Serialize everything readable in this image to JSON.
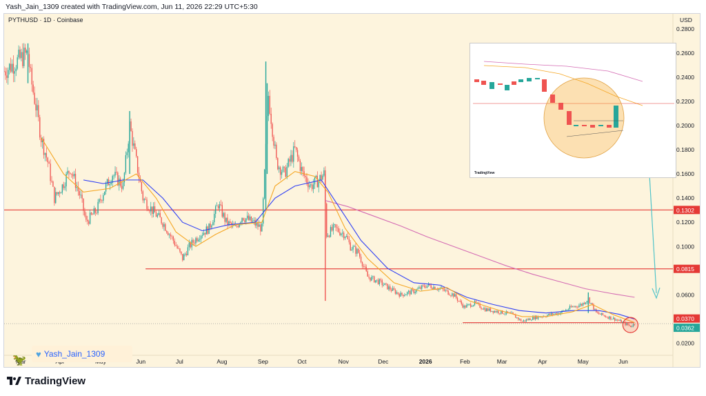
{
  "credit": "Yash_Jain_1309 created with TradingView.com, Jun 11, 2026 22:29 UTC+5:30",
  "brand": "TradingView",
  "author_badge": "Yash_Jain_1309",
  "inset_label": "TradingView",
  "colors": {
    "background": "#fdf4dd",
    "up_candle": "#26a69a",
    "down_candle": "#ef5350",
    "ma_fast": "#f5a623",
    "ma_mid": "#2d3ef5",
    "ma_slow": "#d46bb3",
    "level_line": "#e53935",
    "arrow": "#4fc3c9"
  },
  "chart_data": {
    "type": "line",
    "title": "PYTHUSD · 1D · Coinbase",
    "currency_label": "USD",
    "y_ticks": [
      "0.0200",
      "0.0400",
      "0.0600",
      "0.0800",
      "0.1000",
      "0.1200",
      "0.1400",
      "0.1600",
      "0.1800",
      "0.2000",
      "0.2200",
      "0.2400",
      "0.2600",
      "0.2800"
    ],
    "ylim": [
      0.014,
      0.289
    ],
    "x_ticks": [
      "Mar",
      "Apr",
      "May",
      "Jun",
      "Jul",
      "Aug",
      "Sep",
      "Oct",
      "Nov",
      "Dec",
      "2026",
      "Feb",
      "Mar",
      "Apr",
      "May",
      "Jun"
    ],
    "x_tick_days": [
      12,
      42,
      72,
      103,
      133,
      164,
      195,
      225,
      256,
      286,
      317,
      348,
      376,
      407,
      437,
      468
    ],
    "xlim_days": [
      0,
      506
    ],
    "price_labels": [
      {
        "text": "0.1302",
        "value": 0.1302,
        "color": "#e53935"
      },
      {
        "text": "0.0815",
        "value": 0.0815,
        "color": "#e53935"
      },
      {
        "text": "0.0370",
        "value": 0.037,
        "color": "#e53935"
      },
      {
        "text": "0.0362",
        "value": 0.0362,
        "color": "#26a69a"
      }
    ],
    "horizontal_levels": [
      {
        "value": 0.1302,
        "start_day": 0,
        "end_day": 506
      },
      {
        "value": 0.0815,
        "start_day": 107,
        "end_day": 506
      },
      {
        "value": 0.037,
        "start_day": 347,
        "end_day": 477
      },
      {
        "value": 0.0362,
        "start_day": 0,
        "end_day": 506,
        "dotted": true
      }
    ],
    "price_path": [
      {
        "day": 0,
        "price": 0.245
      },
      {
        "day": 18,
        "price": 0.26
      },
      {
        "day": 20,
        "price": 0.24
      },
      {
        "day": 25,
        "price": 0.21
      },
      {
        "day": 28,
        "price": 0.19
      },
      {
        "day": 33,
        "price": 0.17
      },
      {
        "day": 38,
        "price": 0.14
      },
      {
        "day": 44,
        "price": 0.15
      },
      {
        "day": 50,
        "price": 0.165
      },
      {
        "day": 58,
        "price": 0.14
      },
      {
        "day": 62,
        "price": 0.12
      },
      {
        "day": 70,
        "price": 0.13
      },
      {
        "day": 75,
        "price": 0.145
      },
      {
        "day": 82,
        "price": 0.16
      },
      {
        "day": 90,
        "price": 0.15
      },
      {
        "day": 95,
        "price": 0.2
      },
      {
        "day": 100,
        "price": 0.17
      },
      {
        "day": 105,
        "price": 0.14
      },
      {
        "day": 112,
        "price": 0.13
      },
      {
        "day": 120,
        "price": 0.12
      },
      {
        "day": 128,
        "price": 0.105
      },
      {
        "day": 135,
        "price": 0.09
      },
      {
        "day": 140,
        "price": 0.1
      },
      {
        "day": 148,
        "price": 0.11
      },
      {
        "day": 155,
        "price": 0.115
      },
      {
        "day": 162,
        "price": 0.135
      },
      {
        "day": 168,
        "price": 0.12
      },
      {
        "day": 175,
        "price": 0.115
      },
      {
        "day": 180,
        "price": 0.125
      },
      {
        "day": 188,
        "price": 0.12
      },
      {
        "day": 195,
        "price": 0.115
      },
      {
        "day": 200,
        "price": 0.225
      },
      {
        "day": 206,
        "price": 0.17
      },
      {
        "day": 212,
        "price": 0.16
      },
      {
        "day": 220,
        "price": 0.18
      },
      {
        "day": 226,
        "price": 0.16
      },
      {
        "day": 232,
        "price": 0.15
      },
      {
        "day": 238,
        "price": 0.155
      },
      {
        "day": 242,
        "price": 0.16
      },
      {
        "day": 244,
        "price": 0.11
      },
      {
        "day": 250,
        "price": 0.115
      },
      {
        "day": 258,
        "price": 0.11
      },
      {
        "day": 262,
        "price": 0.1
      },
      {
        "day": 268,
        "price": 0.095
      },
      {
        "day": 275,
        "price": 0.075
      },
      {
        "day": 285,
        "price": 0.07
      },
      {
        "day": 292,
        "price": 0.065
      },
      {
        "day": 300,
        "price": 0.06
      },
      {
        "day": 310,
        "price": 0.063
      },
      {
        "day": 320,
        "price": 0.068
      },
      {
        "day": 330,
        "price": 0.065
      },
      {
        "day": 340,
        "price": 0.06
      },
      {
        "day": 348,
        "price": 0.05
      },
      {
        "day": 356,
        "price": 0.053
      },
      {
        "day": 364,
        "price": 0.048
      },
      {
        "day": 374,
        "price": 0.046
      },
      {
        "day": 384,
        "price": 0.044
      },
      {
        "day": 392,
        "price": 0.038
      },
      {
        "day": 400,
        "price": 0.041
      },
      {
        "day": 410,
        "price": 0.043
      },
      {
        "day": 420,
        "price": 0.045
      },
      {
        "day": 430,
        "price": 0.05
      },
      {
        "day": 437,
        "price": 0.052
      },
      {
        "day": 442,
        "price": 0.057
      },
      {
        "day": 448,
        "price": 0.045
      },
      {
        "day": 456,
        "price": 0.042
      },
      {
        "day": 462,
        "price": 0.04
      },
      {
        "day": 468,
        "price": 0.037
      },
      {
        "day": 474,
        "price": 0.034
      },
      {
        "day": 477,
        "price": 0.0362
      }
    ],
    "spikes": [
      {
        "day": 18,
        "low": 0.235,
        "high": 0.268
      },
      {
        "day": 95,
        "low": 0.16,
        "high": 0.212
      },
      {
        "day": 198,
        "low": 0.13,
        "high": 0.253
      },
      {
        "day": 199,
        "low": 0.16,
        "high": 0.235
      },
      {
        "day": 243,
        "low": 0.055,
        "high": 0.16
      },
      {
        "day": 442,
        "low": 0.045,
        "high": 0.062
      }
    ],
    "ma_fast": [
      {
        "day": 28,
        "price": 0.19
      },
      {
        "day": 45,
        "price": 0.16
      },
      {
        "day": 60,
        "price": 0.145
      },
      {
        "day": 80,
        "price": 0.148
      },
      {
        "day": 100,
        "price": 0.16
      },
      {
        "day": 115,
        "price": 0.14
      },
      {
        "day": 130,
        "price": 0.112
      },
      {
        "day": 145,
        "price": 0.1
      },
      {
        "day": 160,
        "price": 0.11
      },
      {
        "day": 175,
        "price": 0.118
      },
      {
        "day": 195,
        "price": 0.12
      },
      {
        "day": 205,
        "price": 0.15
      },
      {
        "day": 220,
        "price": 0.162
      },
      {
        "day": 235,
        "price": 0.158
      },
      {
        "day": 245,
        "price": 0.145
      },
      {
        "day": 258,
        "price": 0.115
      },
      {
        "day": 275,
        "price": 0.09
      },
      {
        "day": 295,
        "price": 0.07
      },
      {
        "day": 315,
        "price": 0.063
      },
      {
        "day": 335,
        "price": 0.066
      },
      {
        "day": 352,
        "price": 0.055
      },
      {
        "day": 372,
        "price": 0.048
      },
      {
        "day": 392,
        "price": 0.042
      },
      {
        "day": 410,
        "price": 0.042
      },
      {
        "day": 430,
        "price": 0.046
      },
      {
        "day": 445,
        "price": 0.052
      },
      {
        "day": 460,
        "price": 0.044
      },
      {
        "day": 477,
        "price": 0.037
      }
    ],
    "ma_mid": [
      {
        "day": 60,
        "price": 0.155
      },
      {
        "day": 75,
        "price": 0.152
      },
      {
        "day": 90,
        "price": 0.155
      },
      {
        "day": 105,
        "price": 0.155
      },
      {
        "day": 120,
        "price": 0.14
      },
      {
        "day": 135,
        "price": 0.12
      },
      {
        "day": 150,
        "price": 0.113
      },
      {
        "day": 170,
        "price": 0.118
      },
      {
        "day": 190,
        "price": 0.12
      },
      {
        "day": 205,
        "price": 0.14
      },
      {
        "day": 220,
        "price": 0.15
      },
      {
        "day": 240,
        "price": 0.155
      },
      {
        "day": 255,
        "price": 0.13
      },
      {
        "day": 270,
        "price": 0.105
      },
      {
        "day": 290,
        "price": 0.082
      },
      {
        "day": 310,
        "price": 0.07
      },
      {
        "day": 330,
        "price": 0.068
      },
      {
        "day": 350,
        "price": 0.058
      },
      {
        "day": 370,
        "price": 0.052
      },
      {
        "day": 390,
        "price": 0.047
      },
      {
        "day": 410,
        "price": 0.045
      },
      {
        "day": 430,
        "price": 0.047
      },
      {
        "day": 450,
        "price": 0.047
      },
      {
        "day": 465,
        "price": 0.044
      },
      {
        "day": 477,
        "price": 0.04
      }
    ],
    "ma_slow": [
      {
        "day": 243,
        "price": 0.138
      },
      {
        "day": 260,
        "price": 0.133
      },
      {
        "day": 280,
        "price": 0.125
      },
      {
        "day": 300,
        "price": 0.117
      },
      {
        "day": 320,
        "price": 0.108
      },
      {
        "day": 340,
        "price": 0.1
      },
      {
        "day": 360,
        "price": 0.092
      },
      {
        "day": 380,
        "price": 0.084
      },
      {
        "day": 400,
        "price": 0.077
      },
      {
        "day": 420,
        "price": 0.071
      },
      {
        "day": 440,
        "price": 0.065
      },
      {
        "day": 460,
        "price": 0.061
      },
      {
        "day": 477,
        "price": 0.058
      }
    ]
  }
}
